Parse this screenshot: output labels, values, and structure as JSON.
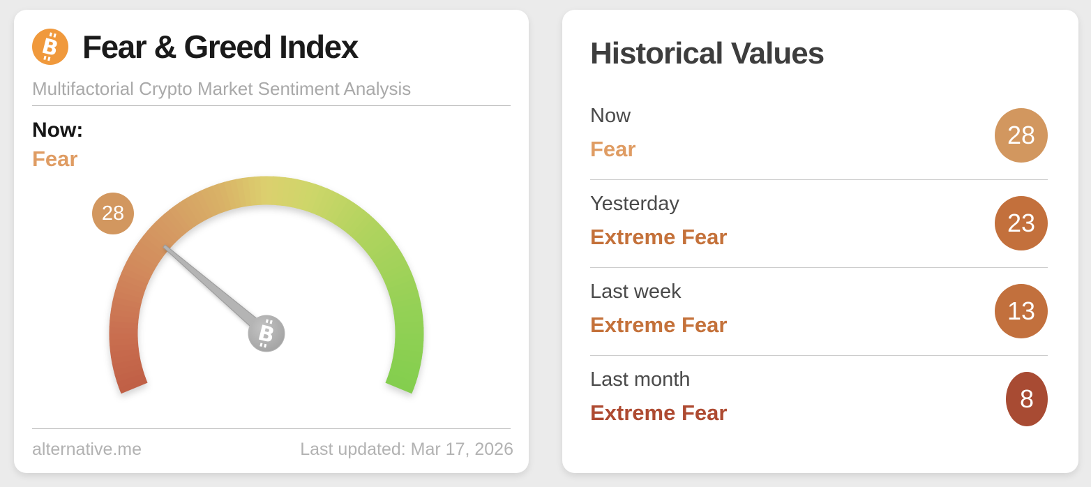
{
  "page": {
    "background_color": "#ebebeb"
  },
  "left_card": {
    "title": "Fear & Greed Index",
    "subtitle": "Multifactorial Crypto Market Sentiment Analysis",
    "now_label": "Now:",
    "now_sentiment": "Fear",
    "now_sentiment_color": "#df9c63",
    "gauge_badge_value": "28",
    "gauge_badge_color": "#d2975f",
    "bitcoin_orange": "#f0993c",
    "footer_source": "alternative.me",
    "footer_updated": "Last updated: Mar 17, 2026"
  },
  "right_card": {
    "title": "Historical Values",
    "rows": [
      {
        "label": "Now",
        "sentiment": "Fear",
        "value": "28",
        "badge_color": "#d2975f",
        "text_color": "#df9c63"
      },
      {
        "label": "Yesterday",
        "sentiment": "Extreme Fear",
        "value": "23",
        "badge_color": "#c3703c",
        "text_color": "#c4713a"
      },
      {
        "label": "Last week",
        "sentiment": "Extreme Fear",
        "value": "13",
        "badge_color": "#c2703d",
        "text_color": "#c4713a"
      },
      {
        "label": "Last month",
        "sentiment": "Extreme Fear",
        "value": "8",
        "badge_color": "#a84b33",
        "text_color": "#ae4a31"
      }
    ]
  },
  "chart_data": {
    "type": "gauge",
    "title": "Fear & Greed Index",
    "value": 28,
    "min": 0,
    "max": 100,
    "sentiment": "Fear",
    "start_angle_deg": 202.5,
    "sweep_deg": 225,
    "color_stops": [
      {
        "t": 0.0,
        "color": "#c05f45"
      },
      {
        "t": 0.1,
        "color": "#c96f50"
      },
      {
        "t": 0.22,
        "color": "#d28a5c"
      },
      {
        "t": 0.32,
        "color": "#d59c63"
      },
      {
        "t": 0.42,
        "color": "#d9b267"
      },
      {
        "t": 0.5,
        "color": "#dcd06e"
      },
      {
        "t": 0.58,
        "color": "#cdd669"
      },
      {
        "t": 0.7,
        "color": "#b0d35e"
      },
      {
        "t": 0.85,
        "color": "#95d156"
      },
      {
        "t": 1.0,
        "color": "#83ce4e"
      }
    ],
    "history": [
      {
        "label": "Now",
        "value": 28,
        "sentiment": "Fear"
      },
      {
        "label": "Yesterday",
        "value": 23,
        "sentiment": "Extreme Fear"
      },
      {
        "label": "Last week",
        "value": 13,
        "sentiment": "Extreme Fear"
      },
      {
        "label": "Last month",
        "value": 8,
        "sentiment": "Extreme Fear"
      }
    ]
  }
}
